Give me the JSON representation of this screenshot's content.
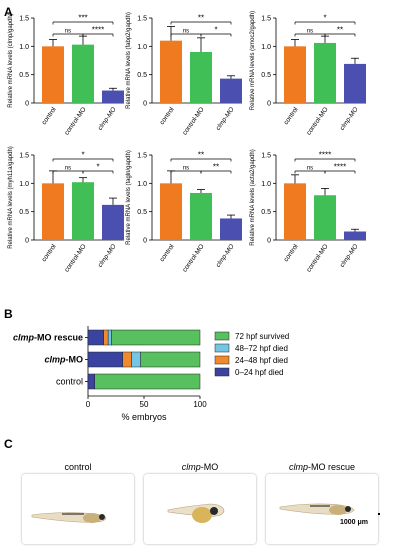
{
  "panels": {
    "A": "A",
    "B": "B",
    "C": "C"
  },
  "chart_data": [
    {
      "type": "bar",
      "id": "a1",
      "categories": [
        "control",
        "control-MO",
        "clmp-MO"
      ],
      "values": [
        1.0,
        1.03,
        0.22
      ],
      "errors": [
        0.12,
        0.15,
        0.04
      ],
      "ylabel": "Relative mRNA levels (clmp/gapdh)",
      "ylim": [
        0,
        1.5
      ],
      "yticks": [
        "0",
        "0.5",
        "1.0",
        "1.5"
      ],
      "significance": [
        {
          "label": "***",
          "from": 0,
          "to": 2,
          "level": 1
        },
        {
          "label": "ns",
          "from": 0,
          "to": 1,
          "level": 0
        },
        {
          "label": "****",
          "from": 1,
          "to": 2,
          "level": 0
        }
      ]
    },
    {
      "type": "bar",
      "id": "a2",
      "categories": [
        "control",
        "control-MO",
        "clmp-MO"
      ],
      "values": [
        1.1,
        0.9,
        0.43
      ],
      "errors": [
        0.25,
        0.25,
        0.05
      ],
      "ylabel": "Relative mRNA levels (fabp2/gapdh)",
      "ylim": [
        0,
        1.5
      ],
      "yticks": [
        "0",
        "0.5",
        "1.0",
        "1.5"
      ],
      "significance": [
        {
          "label": "ns",
          "from": 0,
          "to": 1,
          "level": 0
        },
        {
          "label": "**",
          "from": 0,
          "to": 2,
          "level": 1
        },
        {
          "label": "*",
          "from": 1,
          "to": 2,
          "level": 0
        }
      ]
    },
    {
      "type": "bar",
      "id": "a3",
      "categories": [
        "control",
        "control-MO",
        "clmp-MO"
      ],
      "values": [
        1.0,
        1.06,
        0.69
      ],
      "errors": [
        0.12,
        0.12,
        0.1
      ],
      "ylabel": "Relative mRNA levels (smoc2/gapdh)",
      "ylim": [
        0,
        1.5
      ],
      "yticks": [
        "0",
        "0.5",
        "1.0",
        "1.5"
      ],
      "significance": [
        {
          "label": "ns",
          "from": 0,
          "to": 1,
          "level": 0
        },
        {
          "label": "*",
          "from": 0,
          "to": 2,
          "level": 1
        },
        {
          "label": "**",
          "from": 1,
          "to": 2,
          "level": 0
        }
      ]
    },
    {
      "type": "bar",
      "id": "a4",
      "categories": [
        "control",
        "control-MO",
        "clmp-MO"
      ],
      "values": [
        1.0,
        1.02,
        0.62
      ],
      "errors": [
        0.22,
        0.08,
        0.12
      ],
      "ylabel": "Relative mRNA levels (myh11a/gapdh)",
      "ylim": [
        0,
        1.5
      ],
      "yticks": [
        "0",
        "0.5",
        "1.0",
        "1.5"
      ],
      "significance": [
        {
          "label": "ns",
          "from": 0,
          "to": 1,
          "level": 0
        },
        {
          "label": "*",
          "from": 0,
          "to": 2,
          "level": 1
        },
        {
          "label": "*",
          "from": 1,
          "to": 2,
          "level": 0
        }
      ]
    },
    {
      "type": "bar",
      "id": "a5",
      "categories": [
        "control",
        "control-MO",
        "clmp-MO"
      ],
      "values": [
        1.0,
        0.83,
        0.38
      ],
      "errors": [
        0.22,
        0.06,
        0.06
      ],
      "ylabel": "Relative mRNA levels (tagln/gapdh)",
      "ylim": [
        0,
        1.5
      ],
      "yticks": [
        "0",
        "0.5",
        "1.0",
        "1.5"
      ],
      "significance": [
        {
          "label": "**",
          "from": 0,
          "to": 2,
          "level": 1
        },
        {
          "label": "ns",
          "from": 0,
          "to": 1,
          "level": 0
        },
        {
          "label": "**",
          "from": 1,
          "to": 2,
          "level": 0
        }
      ]
    },
    {
      "type": "bar",
      "id": "a6",
      "categories": [
        "control",
        "control-MO",
        "clmp-MO"
      ],
      "values": [
        1.0,
        0.79,
        0.15
      ],
      "errors": [
        0.15,
        0.12,
        0.04
      ],
      "ylabel": "Relative mRNA levels (acta2/gapdh)",
      "ylim": [
        0,
        1.5
      ],
      "yticks": [
        "0",
        "0.5",
        "1.0",
        "1.5"
      ],
      "significance": [
        {
          "label": "****",
          "from": 0,
          "to": 2,
          "level": 1
        },
        {
          "label": "ns",
          "from": 0,
          "to": 1,
          "level": 0
        },
        {
          "label": "****",
          "from": 1,
          "to": 2,
          "level": 0
        }
      ]
    },
    {
      "type": "bar",
      "id": "b",
      "orientation": "horizontal-stacked",
      "categories": [
        "clmp-MO rescue",
        "clmp-MO",
        "control"
      ],
      "series": [
        {
          "name": "0–24 hpf died",
          "color": "#3a44a0",
          "values": [
            14,
            31,
            6
          ]
        },
        {
          "name": "24–48 hpf died",
          "color": "#f08a2c",
          "values": [
            4,
            8,
            0
          ]
        },
        {
          "name": "48–72 hpf died",
          "color": "#75c6e4",
          "values": [
            3,
            8,
            0
          ]
        },
        {
          "name": "72 hpf survived",
          "color": "#58c05f",
          "values": [
            79,
            53,
            94
          ]
        }
      ],
      "xlabel": "% embryos",
      "xlim": [
        0,
        100
      ],
      "xticks": [
        "0",
        "50",
        "100"
      ],
      "legend_position": "right"
    }
  ],
  "panel_c": {
    "images": [
      {
        "title": "control"
      },
      {
        "title_italic": "clmp",
        "title_rest": "-MO"
      },
      {
        "title_italic": "clmp",
        "title_rest": "-MO rescue"
      }
    ],
    "scale_bar_label": "1000 μm"
  }
}
